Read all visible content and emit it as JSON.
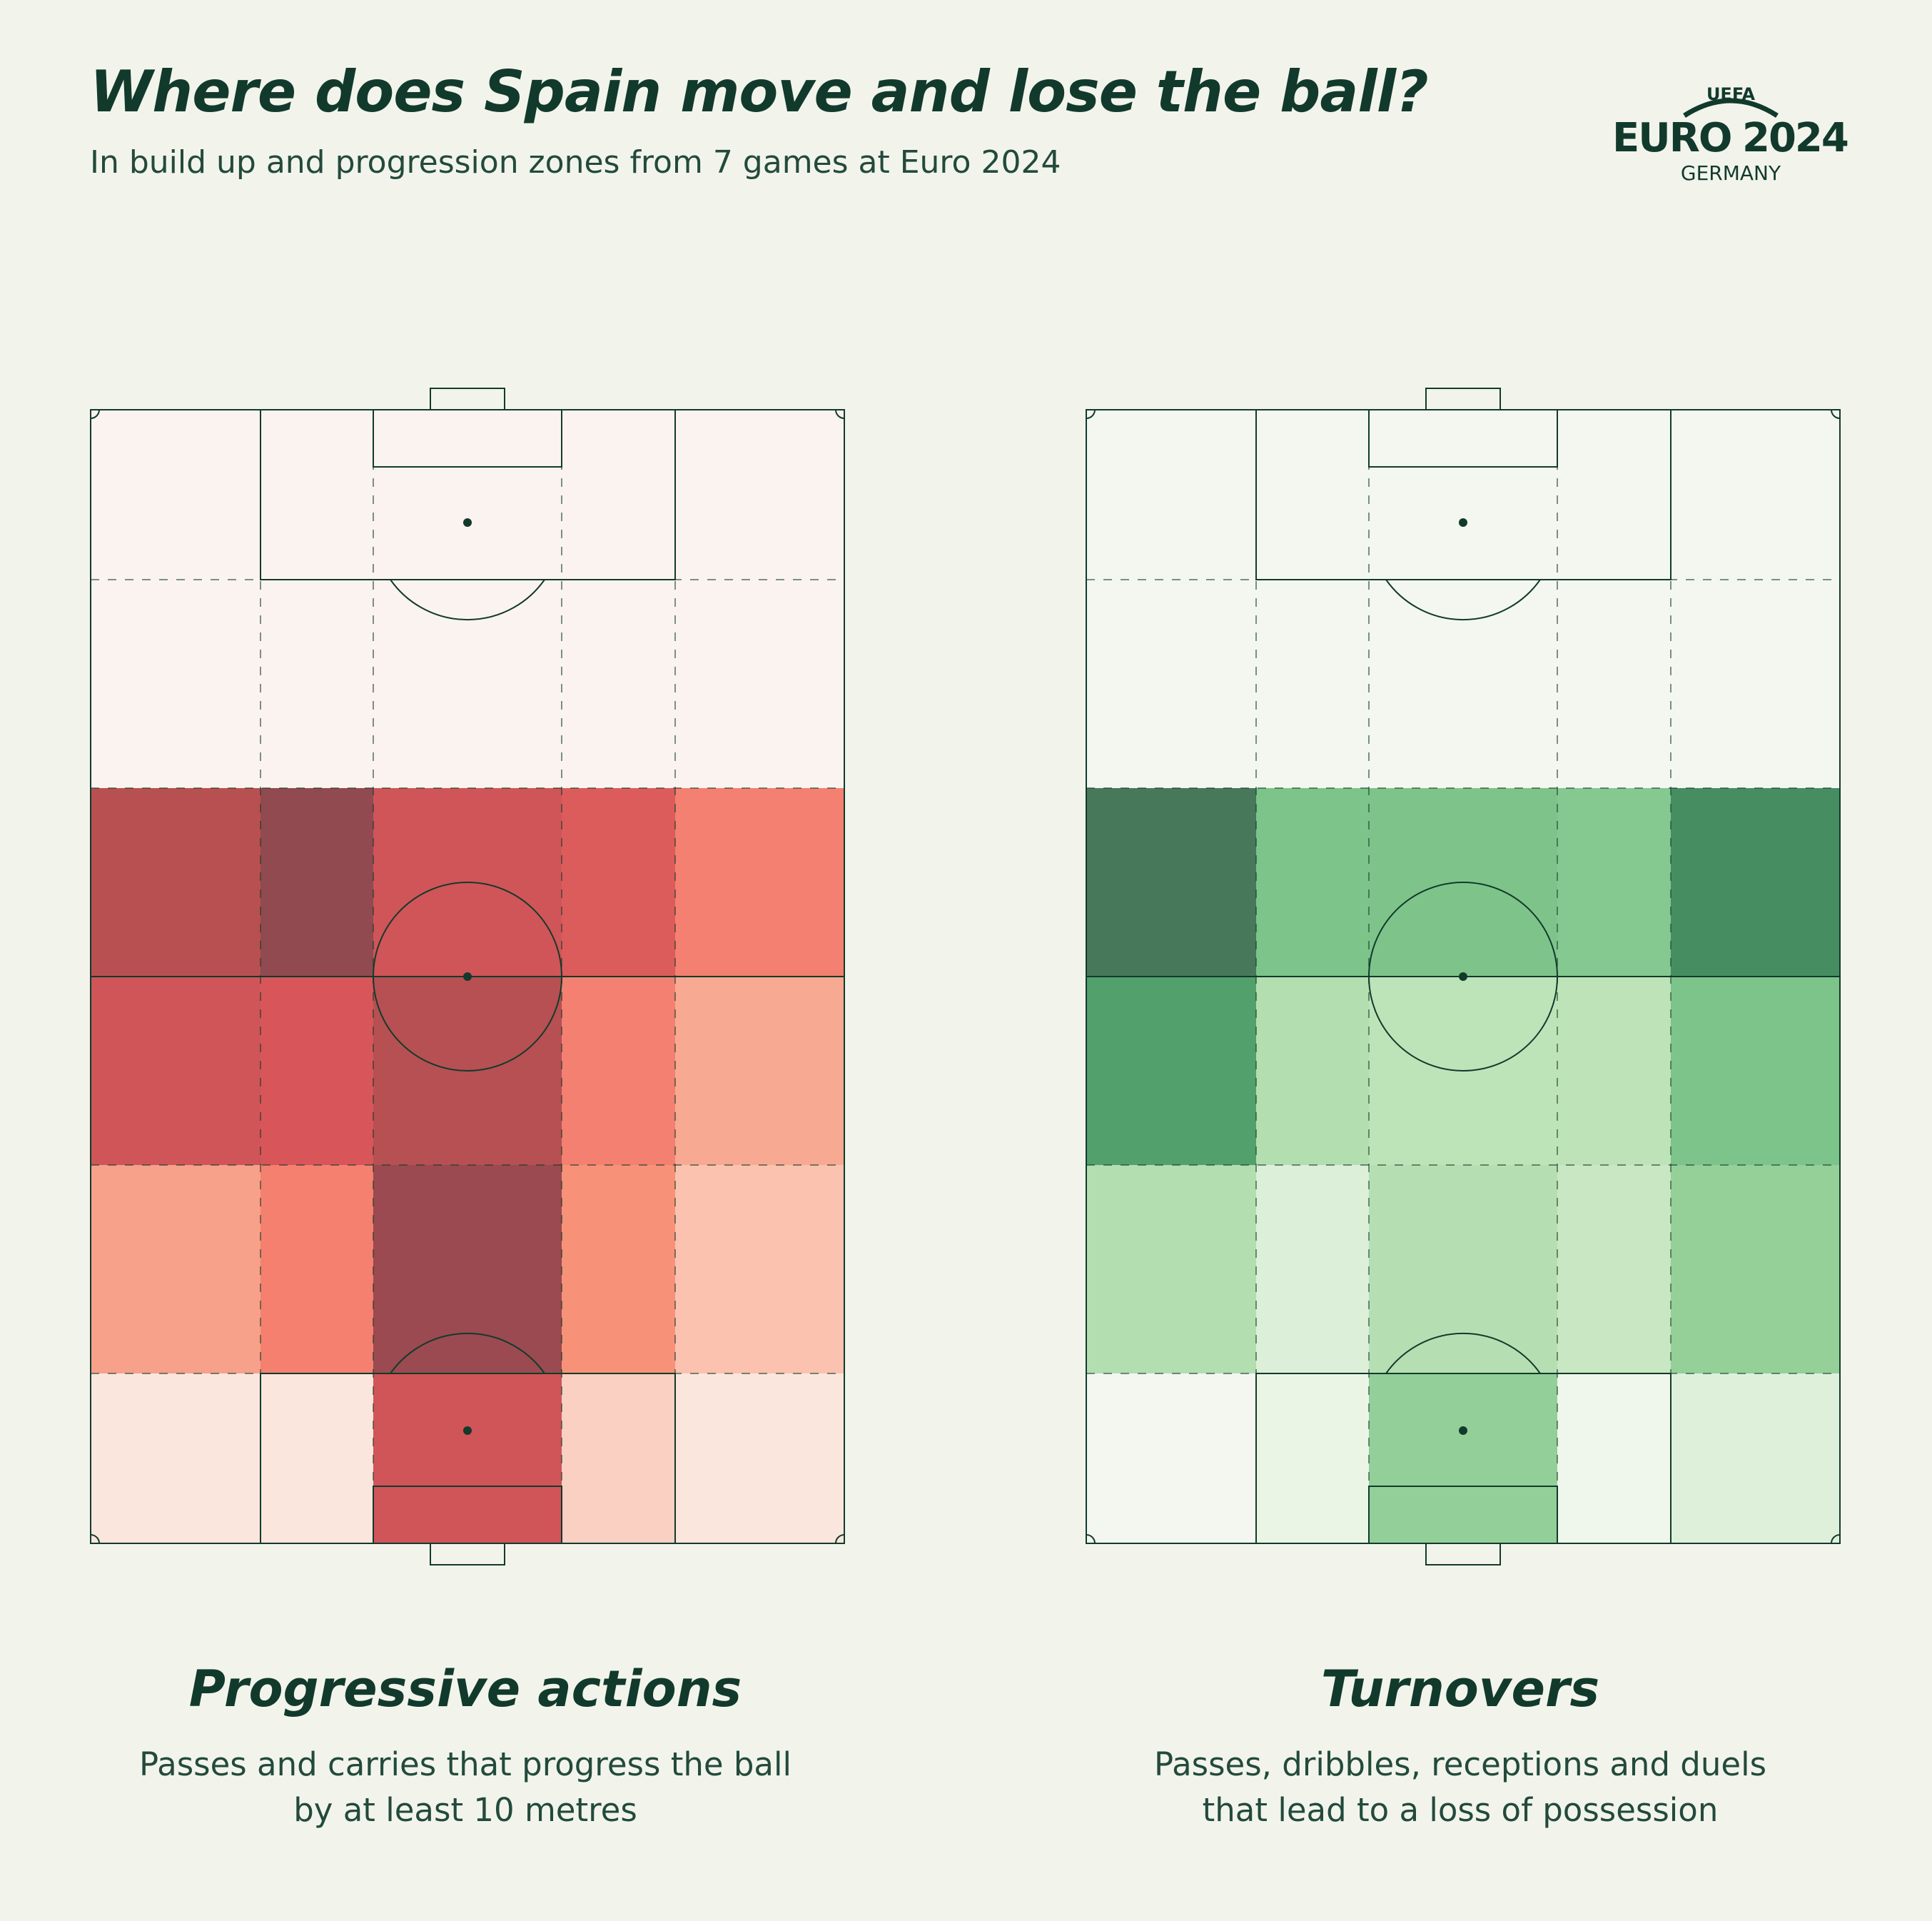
{
  "header": {
    "title": "Where does Spain move and lose the ball?",
    "subtitle": "In build up and progression zones from 7 games at Euro 2024"
  },
  "logo": {
    "top_text": "UEFA",
    "main_text_a": "EURO",
    "main_text_b": "2024",
    "bottom_text": "GERMANY"
  },
  "colors": {
    "background": "#f2f4ec",
    "line": "#123a2c"
  },
  "chart_data": [
    {
      "type": "heatmap",
      "title": "Progressive actions",
      "subtitle_lines": [
        "Passes and carries that progress the ball",
        "by at least 10 metres"
      ],
      "columns": [
        "wide-left",
        "half-space-left",
        "central",
        "half-space-right",
        "wide-right"
      ],
      "rows": [
        "final-third-upper",
        "final-third-lower",
        "midfield-upper",
        "midfield-lower",
        "defensive-upper",
        "defensive-box"
      ],
      "cell_colors": [
        [
          "#fbf3ef",
          "#fbf3ef",
          "#fbf3ef",
          "#fbf3ef",
          "#fbf3ef"
        ],
        [
          "#fbf3ef",
          "#fbf3ef",
          "#fbf3ef",
          "#fbf3ef",
          "#fbf3ef"
        ],
        [
          "#b85052",
          "#904a50",
          "#d05558",
          "#dc5c5c",
          "#f38070"
        ],
        [
          "#cf5558",
          "#d85659",
          "#b65052",
          "#f38070",
          "#f8a992"
        ],
        [
          "#f7a08a",
          "#f58070",
          "#9a4a50",
          "#f79278",
          "#fac2af"
        ],
        [
          "#fbe6dd",
          "#fbe6dd",
          "#d05558",
          "#f9d0c1",
          "#fbe6dd"
        ]
      ]
    },
    {
      "type": "heatmap",
      "title": "Turnovers",
      "subtitle_lines": [
        "Passes, dribbles, receptions and duels",
        "that lead to a loss of possession"
      ],
      "columns": [
        "wide-left",
        "half-space-left",
        "central",
        "half-space-right",
        "wide-right"
      ],
      "rows": [
        "final-third-upper",
        "final-third-lower",
        "midfield-upper",
        "midfield-lower",
        "defensive-upper",
        "defensive-box"
      ],
      "cell_colors": [
        [
          "#f3f7f0",
          "#f3f7f0",
          "#f3f7f0",
          "#f3f7f0",
          "#f3f7f0"
        ],
        [
          "#f3f7f0",
          "#f3f7f0",
          "#f3f7f0",
          "#f3f7f0",
          "#f3f7f0"
        ],
        [
          "#48785a",
          "#7cc48a",
          "#7ec48a",
          "#85c890",
          "#468e62"
        ],
        [
          "#52a06c",
          "#b3dfb0",
          "#bde3b8",
          "#bee3b8",
          "#7cc48a"
        ],
        [
          "#b2deb0",
          "#dcefd8",
          "#b5dfb2",
          "#c8e7c2",
          "#95d099"
        ],
        [
          "#f3f7f0",
          "#eaf5e6",
          "#93cf98",
          "#eff7ec",
          "#dff0da"
        ]
      ]
    }
  ]
}
